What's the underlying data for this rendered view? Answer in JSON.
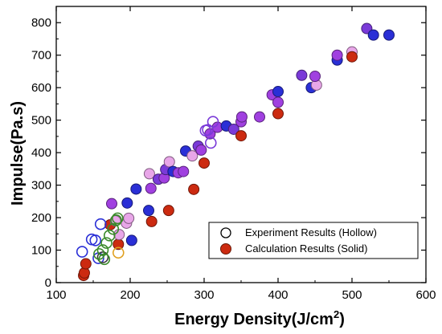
{
  "chart_data": {
    "type": "scatter",
    "title": "",
    "xlabel": "Energy Density(J/cm",
    "xlabel_superscript": "2",
    "xlabel_suffix": ")",
    "ylabel": "Impulse(Pa.s)",
    "xlim": [
      100,
      600
    ],
    "ylim": [
      0,
      850
    ],
    "x_ticks": [
      "100",
      "200",
      "300",
      "400",
      "500",
      "600"
    ],
    "y_ticks": [
      "0",
      "100",
      "200",
      "300",
      "400",
      "500",
      "600",
      "700",
      "800"
    ],
    "grid": false,
    "legend_position": "bottom-right",
    "legend": [
      {
        "label": "Experiment Results (Hollow)",
        "style": "hollow"
      },
      {
        "label": "Calculation Results (Solid)",
        "style": "solid"
      }
    ],
    "series": [
      {
        "name": "Experiment Results (Hollow)",
        "style": "hollow",
        "points": [
          {
            "x": 135,
            "y": 95,
            "color": "#2a2fd6"
          },
          {
            "x": 148,
            "y": 133,
            "color": "#2a2fd6"
          },
          {
            "x": 153,
            "y": 130,
            "color": "#2a2fd6"
          },
          {
            "x": 160,
            "y": 180,
            "color": "#2a2fd6"
          },
          {
            "x": 157,
            "y": 75,
            "color": "#2a2fd6"
          },
          {
            "x": 163,
            "y": 78,
            "color": "#3a3a3a"
          },
          {
            "x": 165,
            "y": 72,
            "color": "#3a8a2a"
          },
          {
            "x": 158,
            "y": 88,
            "color": "#3a8a2a"
          },
          {
            "x": 163,
            "y": 100,
            "color": "#3a8a2a"
          },
          {
            "x": 168,
            "y": 122,
            "color": "#3a8a2a"
          },
          {
            "x": 172,
            "y": 145,
            "color": "#3a8a2a"
          },
          {
            "x": 177,
            "y": 165,
            "color": "#3a8a2a"
          },
          {
            "x": 181,
            "y": 192,
            "color": "#3a8a2a"
          },
          {
            "x": 183,
            "y": 198,
            "color": "#3a8a2a"
          },
          {
            "x": 184,
            "y": 92,
            "color": "#e0a020"
          },
          {
            "x": 302,
            "y": 468,
            "color": "#7a3ad8"
          },
          {
            "x": 305,
            "y": 470,
            "color": "#7a3ad8"
          },
          {
            "x": 309,
            "y": 430,
            "color": "#7a3ad8"
          },
          {
            "x": 312,
            "y": 495,
            "color": "#7a3ad8"
          }
        ]
      },
      {
        "name": "Calculation Results (Solid)",
        "style": "solid",
        "points": [
          {
            "x": 137,
            "y": 22,
            "color": "#cc2a10"
          },
          {
            "x": 138,
            "y": 30,
            "color": "#cc2a10"
          },
          {
            "x": 140,
            "y": 58,
            "color": "#cc2a10"
          },
          {
            "x": 173,
            "y": 178,
            "color": "#cc2a10"
          },
          {
            "x": 180,
            "y": 190,
            "color": "#e8a6e8"
          },
          {
            "x": 184,
            "y": 118,
            "color": "#cc2a10"
          },
          {
            "x": 185,
            "y": 148,
            "color": "#e8a6e8"
          },
          {
            "x": 195,
            "y": 183,
            "color": "#e8a6e8"
          },
          {
            "x": 198,
            "y": 198,
            "color": "#e8a6e8"
          },
          {
            "x": 175,
            "y": 243,
            "color": "#a040e0"
          },
          {
            "x": 196,
            "y": 245,
            "color": "#2a2fd6"
          },
          {
            "x": 202,
            "y": 130,
            "color": "#2a2fd6"
          },
          {
            "x": 208,
            "y": 288,
            "color": "#2a2fd6"
          },
          {
            "x": 225,
            "y": 222,
            "color": "#2a2fd6"
          },
          {
            "x": 226,
            "y": 335,
            "color": "#e8a6e8"
          },
          {
            "x": 228,
            "y": 290,
            "color": "#a040e0"
          },
          {
            "x": 229,
            "y": 188,
            "color": "#cc2a10"
          },
          {
            "x": 238,
            "y": 318,
            "color": "#7a3ad8"
          },
          {
            "x": 246,
            "y": 322,
            "color": "#a040e0"
          },
          {
            "x": 248,
            "y": 348,
            "color": "#7a3ad8"
          },
          {
            "x": 252,
            "y": 222,
            "color": "#cc2a10"
          },
          {
            "x": 253,
            "y": 372,
            "color": "#e8a6e8"
          },
          {
            "x": 258,
            "y": 342,
            "color": "#2a2fd6"
          },
          {
            "x": 265,
            "y": 338,
            "color": "#a040e0"
          },
          {
            "x": 272,
            "y": 342,
            "color": "#a040e0"
          },
          {
            "x": 275,
            "y": 405,
            "color": "#2a2fd6"
          },
          {
            "x": 284,
            "y": 390,
            "color": "#e8a6e8"
          },
          {
            "x": 286,
            "y": 287,
            "color": "#cc2a10"
          },
          {
            "x": 292,
            "y": 420,
            "color": "#7a3ad8"
          },
          {
            "x": 296,
            "y": 408,
            "color": "#a040e0"
          },
          {
            "x": 300,
            "y": 368,
            "color": "#cc2a10"
          },
          {
            "x": 308,
            "y": 458,
            "color": "#a040e0"
          },
          {
            "x": 318,
            "y": 478,
            "color": "#a040e0"
          },
          {
            "x": 330,
            "y": 482,
            "color": "#2a2fd6"
          },
          {
            "x": 340,
            "y": 472,
            "color": "#7a3ad8"
          },
          {
            "x": 350,
            "y": 495,
            "color": "#a040e0"
          },
          {
            "x": 351,
            "y": 510,
            "color": "#a040e0"
          },
          {
            "x": 350,
            "y": 452,
            "color": "#cc2a10"
          },
          {
            "x": 375,
            "y": 510,
            "color": "#a040e0"
          },
          {
            "x": 392,
            "y": 578,
            "color": "#a040e0"
          },
          {
            "x": 400,
            "y": 588,
            "color": "#2a2fd6"
          },
          {
            "x": 400,
            "y": 555,
            "color": "#a040e0"
          },
          {
            "x": 400,
            "y": 520,
            "color": "#cc2a10"
          },
          {
            "x": 432,
            "y": 638,
            "color": "#7a3ad8"
          },
          {
            "x": 445,
            "y": 600,
            "color": "#2a2fd6"
          },
          {
            "x": 452,
            "y": 608,
            "color": "#e8a6e8"
          },
          {
            "x": 450,
            "y": 635,
            "color": "#a040e0"
          },
          {
            "x": 480,
            "y": 685,
            "color": "#2a2fd6"
          },
          {
            "x": 480,
            "y": 700,
            "color": "#a040e0"
          },
          {
            "x": 500,
            "y": 710,
            "color": "#e8a6e8"
          },
          {
            "x": 500,
            "y": 695,
            "color": "#cc2a10"
          },
          {
            "x": 520,
            "y": 782,
            "color": "#7a3ad8"
          },
          {
            "x": 529,
            "y": 762,
            "color": "#2a2fd6"
          },
          {
            "x": 550,
            "y": 762,
            "color": "#2a2fd6"
          }
        ]
      }
    ]
  }
}
